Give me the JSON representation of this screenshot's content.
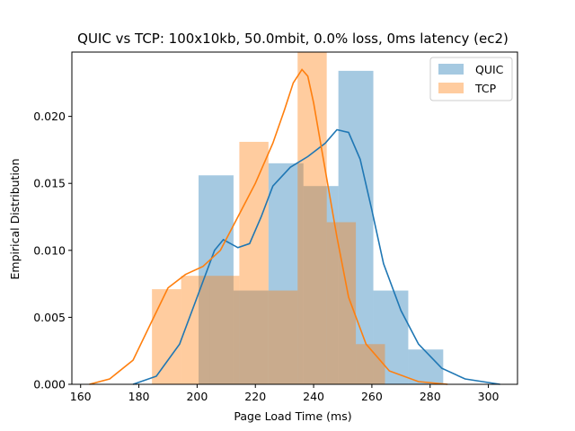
{
  "chart_data": {
    "type": "histogram",
    "title": "QUIC vs TCP: 100x10kb, 50.0mbit, 0.0% loss, 0ms latency (ec2)",
    "xlabel": "Page Load Time (ms)",
    "ylabel": "Empirical Distribution",
    "xlim": [
      157,
      310
    ],
    "ylim": [
      0,
      0.0248
    ],
    "x_ticks": [
      160,
      180,
      200,
      220,
      240,
      260,
      280,
      300
    ],
    "y_ticks": [
      0.0,
      0.005,
      0.01,
      0.015,
      0.02
    ],
    "y_tick_labels": [
      "0.000",
      "0.005",
      "0.010",
      "0.015",
      "0.020"
    ],
    "grid": false,
    "legend_position": "top-right",
    "series": [
      {
        "name": "QUIC",
        "color": "#1f77b4",
        "bins": [
          {
            "start": 200.5,
            "end": 212.5,
            "density": 0.0156
          },
          {
            "start": 212.5,
            "end": 224.5,
            "density": 0.007
          },
          {
            "start": 224.5,
            "end": 236.5,
            "density": 0.0165
          },
          {
            "start": 236.5,
            "end": 248.5,
            "density": 0.0148
          },
          {
            "start": 248.5,
            "end": 260.5,
            "density": 0.0234
          },
          {
            "start": 260.5,
            "end": 272.5,
            "density": 0.007
          },
          {
            "start": 272.5,
            "end": 284.5,
            "density": 0.0026
          }
        ],
        "kde": [
          [
            178,
            0.0
          ],
          [
            186,
            0.0006
          ],
          [
            194,
            0.003
          ],
          [
            200,
            0.0065
          ],
          [
            206,
            0.01
          ],
          [
            209,
            0.0108
          ],
          [
            214,
            0.0102
          ],
          [
            218,
            0.0105
          ],
          [
            222,
            0.0125
          ],
          [
            226,
            0.0148
          ],
          [
            232,
            0.0162
          ],
          [
            238,
            0.017
          ],
          [
            244,
            0.018
          ],
          [
            248,
            0.019
          ],
          [
            252,
            0.0188
          ],
          [
            256,
            0.0168
          ],
          [
            260,
            0.013
          ],
          [
            264,
            0.009
          ],
          [
            270,
            0.0055
          ],
          [
            276,
            0.003
          ],
          [
            284,
            0.0012
          ],
          [
            292,
            0.0004
          ],
          [
            304,
            0.0
          ]
        ]
      },
      {
        "name": "TCP",
        "color": "#ff7f0e",
        "bins": [
          {
            "start": 184.5,
            "end": 194.5,
            "density": 0.0071
          },
          {
            "start": 194.5,
            "end": 204.5,
            "density": 0.0081
          },
          {
            "start": 204.5,
            "end": 214.5,
            "density": 0.0081
          },
          {
            "start": 214.5,
            "end": 224.5,
            "density": 0.0181
          },
          {
            "start": 224.5,
            "end": 234.5,
            "density": 0.007
          },
          {
            "start": 234.5,
            "end": 244.5,
            "density": 0.0248
          },
          {
            "start": 244.5,
            "end": 254.5,
            "density": 0.0121
          },
          {
            "start": 254.5,
            "end": 264.5,
            "density": 0.003
          }
        ],
        "kde": [
          [
            163,
            0.0
          ],
          [
            170,
            0.0004
          ],
          [
            178,
            0.0018
          ],
          [
            184,
            0.0045
          ],
          [
            190,
            0.0072
          ],
          [
            196,
            0.0082
          ],
          [
            202,
            0.0088
          ],
          [
            208,
            0.01
          ],
          [
            214,
            0.0125
          ],
          [
            220,
            0.015
          ],
          [
            226,
            0.018
          ],
          [
            230,
            0.0205
          ],
          [
            233,
            0.0225
          ],
          [
            236,
            0.0235
          ],
          [
            238,
            0.023
          ],
          [
            240,
            0.021
          ],
          [
            244,
            0.016
          ],
          [
            248,
            0.011
          ],
          [
            252,
            0.0065
          ],
          [
            258,
            0.003
          ],
          [
            266,
            0.001
          ],
          [
            276,
            0.0002
          ],
          [
            286,
            0.0
          ]
        ]
      }
    ]
  }
}
